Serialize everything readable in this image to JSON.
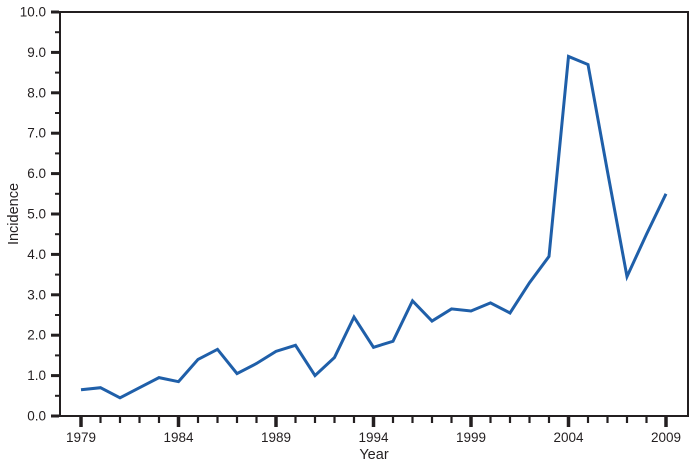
{
  "chart_data": {
    "type": "line",
    "title": "",
    "xlabel": "Year",
    "ylabel": "Incidence",
    "x": [
      1979,
      1980,
      1981,
      1982,
      1983,
      1984,
      1985,
      1986,
      1987,
      1988,
      1989,
      1990,
      1991,
      1992,
      1993,
      1994,
      1995,
      1996,
      1997,
      1998,
      1999,
      2000,
      2001,
      2002,
      2003,
      2004,
      2005,
      2006,
      2007,
      2008,
      2009
    ],
    "series": [
      {
        "name": "Incidence",
        "values": [
          0.65,
          0.7,
          0.45,
          0.7,
          0.95,
          0.85,
          1.4,
          1.65,
          1.05,
          1.3,
          1.6,
          1.75,
          1.0,
          1.45,
          2.45,
          1.7,
          1.85,
          2.85,
          2.35,
          2.65,
          2.6,
          2.8,
          2.55,
          3.3,
          3.95,
          8.9,
          8.7,
          6.05,
          3.45,
          4.5,
          5.5
        ]
      }
    ],
    "ylim": [
      0,
      10
    ],
    "yticks_major": [
      0,
      1,
      2,
      3,
      4,
      5,
      6,
      7,
      8,
      9,
      10
    ],
    "ytick_labels": [
      "0.0",
      "1.0",
      "2.0",
      "3.0",
      "4.0",
      "5.0",
      "6.0",
      "7.0",
      "8.0",
      "9.0",
      "10.0"
    ],
    "yticks_minor": [
      0.5,
      1.5,
      2.5,
      3.5,
      4.5,
      5.5,
      6.5,
      7.5,
      8.5,
      9.5
    ],
    "xticks_labeled": [
      1979,
      1984,
      1989,
      1994,
      1999,
      2004,
      2009
    ],
    "grid": false,
    "legend": "none",
    "line_color": "#1f5fa9",
    "axis_color": "#231f20",
    "background_color": "#ffffff"
  }
}
